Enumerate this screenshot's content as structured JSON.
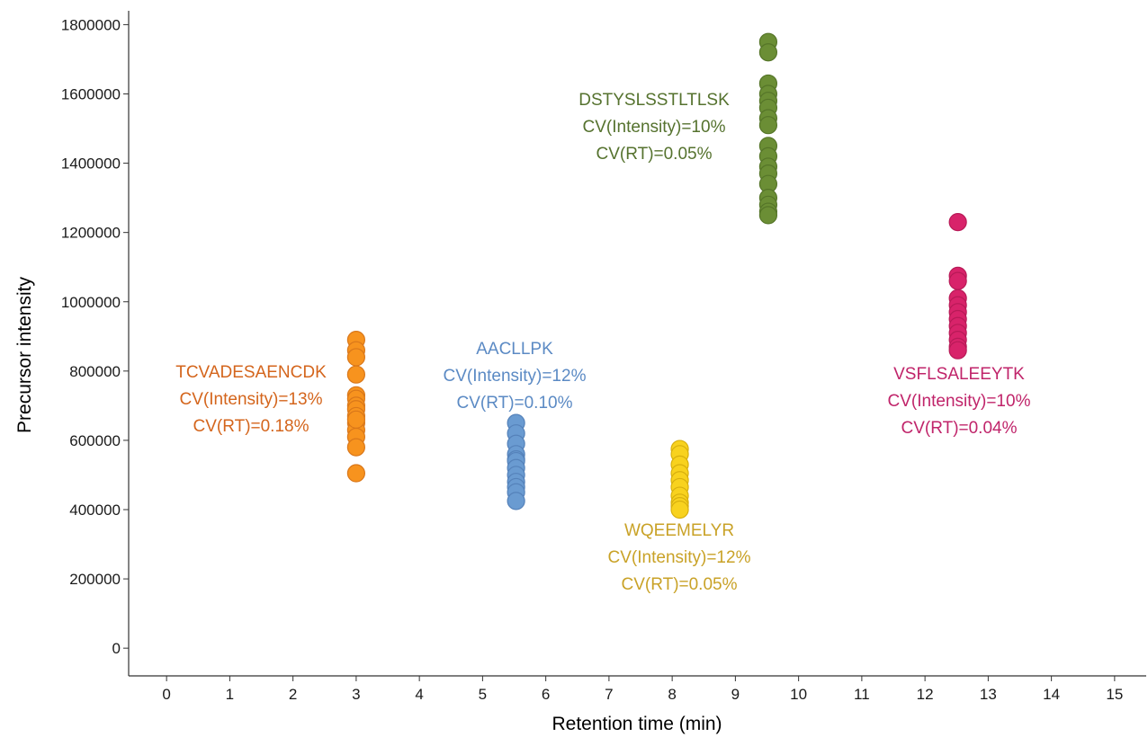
{
  "chart_data": {
    "type": "scatter",
    "xlabel": "Retention time (min)",
    "ylabel": "Precursor intensity",
    "xlim": [
      -0.6,
      15.5
    ],
    "ylim": [
      -80000,
      1840000
    ],
    "x_ticks": [
      0,
      1,
      2,
      3,
      4,
      5,
      6,
      7,
      8,
      9,
      10,
      11,
      12,
      13,
      14,
      15
    ],
    "y_ticks": [
      0,
      200000,
      400000,
      600000,
      800000,
      1000000,
      1200000,
      1400000,
      1600000,
      1800000
    ],
    "grid": false,
    "legend": "none",
    "series": [
      {
        "color": "#f7931e",
        "stroke": "#d9771a",
        "x": [
          3.0,
          3.0,
          3.0,
          3.0,
          3.0,
          3.0,
          3.0,
          3.0,
          3.0,
          3.0,
          3.0,
          3.0,
          3.0,
          3.0,
          3.0
        ],
        "y": [
          890000,
          860000,
          840000,
          790000,
          730000,
          720000,
          700000,
          690000,
          670000,
          650000,
          630000,
          610000,
          580000,
          505000,
          660000
        ],
        "annotation": [
          "TCVADESAENCDK",
          "CV(Intensity)=13%",
          "CV(RT)=0.18%"
        ],
        "annotation_color": "#d4651c"
      },
      {
        "color": "#6a9bd1",
        "stroke": "#5582ba",
        "x": [
          5.53,
          5.53,
          5.53,
          5.53,
          5.53,
          5.53,
          5.53,
          5.53,
          5.53,
          5.53,
          5.53,
          5.53
        ],
        "y": [
          650000,
          620000,
          590000,
          560000,
          545000,
          540000,
          520000,
          500000,
          480000,
          465000,
          450000,
          425000
        ],
        "annotation": [
          "AACLLPK",
          "CV(Intensity)=12%",
          "CV(RT)=0.10%"
        ],
        "annotation_color": "#5b8ac4"
      },
      {
        "color": "#f8d21e",
        "stroke": "#d8b00e",
        "x": [
          8.12,
          8.12,
          8.12,
          8.12,
          8.12,
          8.12,
          8.12,
          8.12,
          8.12,
          8.12
        ],
        "y": [
          575000,
          560000,
          530000,
          505000,
          485000,
          465000,
          440000,
          420000,
          410000,
          400000
        ],
        "annotation": [
          "WQEEMELYR",
          "CV(Intensity)=12%",
          "CV(RT)=0.05%"
        ],
        "annotation_color": "#c9a227"
      },
      {
        "color": "#6b8e35",
        "stroke": "#557528",
        "x": [
          9.52,
          9.52,
          9.52,
          9.52,
          9.52,
          9.52,
          9.52,
          9.52,
          9.52,
          9.52,
          9.52,
          9.52,
          9.52,
          9.52,
          9.52,
          9.52,
          9.52
        ],
        "y": [
          1750000,
          1720000,
          1630000,
          1600000,
          1580000,
          1560000,
          1530000,
          1510000,
          1450000,
          1420000,
          1390000,
          1370000,
          1340000,
          1300000,
          1280000,
          1260000,
          1250000
        ],
        "annotation": [
          "DSTYSLSSTLTLSK",
          "CV(Intensity)=10%",
          "CV(RT)=0.05%"
        ],
        "annotation_color": "#55722e"
      },
      {
        "color": "#d8236a",
        "stroke": "#b81a57",
        "x": [
          12.52,
          12.52,
          12.52,
          12.52,
          12.52,
          12.52,
          12.52,
          12.52,
          12.52,
          12.52,
          12.52,
          12.52
        ],
        "y": [
          1230000,
          1075000,
          1060000,
          1010000,
          990000,
          970000,
          950000,
          930000,
          910000,
          890000,
          870000,
          860000
        ],
        "annotation": [
          "VSFLSALEEYTK",
          "CV(Intensity)=10%",
          "CV(RT)=0.04%"
        ],
        "annotation_color": "#c0246a"
      }
    ]
  }
}
